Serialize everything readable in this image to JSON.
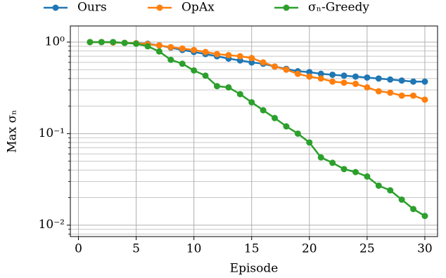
{
  "chart_data": {
    "type": "line",
    "xlabel": "Episode",
    "ylabel": "Max σₙ",
    "x": [
      1,
      2,
      3,
      4,
      5,
      6,
      7,
      8,
      9,
      10,
      11,
      12,
      13,
      14,
      15,
      16,
      17,
      18,
      19,
      20,
      21,
      22,
      23,
      24,
      25,
      26,
      27,
      28,
      29,
      30
    ],
    "series": [
      {
        "name": "Ours",
        "color": "#1f77b4",
        "values": [
          1.0,
          1.0,
          1.0,
          0.98,
          0.97,
          0.96,
          0.92,
          0.87,
          0.82,
          0.78,
          0.74,
          0.7,
          0.66,
          0.63,
          0.6,
          0.58,
          0.54,
          0.51,
          0.48,
          0.47,
          0.45,
          0.44,
          0.43,
          0.42,
          0.41,
          0.4,
          0.39,
          0.38,
          0.37,
          0.37
        ]
      },
      {
        "name": "OpAx",
        "color": "#ff7f0e",
        "values": [
          1.0,
          1.0,
          0.99,
          0.98,
          0.97,
          0.95,
          0.92,
          0.88,
          0.85,
          0.82,
          0.78,
          0.74,
          0.72,
          0.7,
          0.67,
          0.6,
          0.54,
          0.5,
          0.45,
          0.42,
          0.4,
          0.37,
          0.36,
          0.35,
          0.32,
          0.29,
          0.28,
          0.26,
          0.26,
          0.235
        ]
      },
      {
        "name": "σₙ-Greedy",
        "color": "#2ca02c",
        "values": [
          1.0,
          1.0,
          1.0,
          0.98,
          0.96,
          0.9,
          0.79,
          0.64,
          0.58,
          0.49,
          0.43,
          0.33,
          0.32,
          0.27,
          0.22,
          0.18,
          0.148,
          0.12,
          0.1,
          0.08,
          0.055,
          0.048,
          0.041,
          0.038,
          0.034,
          0.027,
          0.024,
          0.019,
          0.015,
          0.0126
        ]
      }
    ],
    "xlim": [
      -0.7,
      31.1
    ],
    "xticks": [
      0,
      5,
      10,
      15,
      20,
      25,
      30
    ],
    "ylim": [
      0.0075,
      1.5
    ],
    "log_y": true,
    "yticks": [
      {
        "value": 0.01,
        "label": "10⁻²"
      },
      {
        "value": 0.1,
        "label": "10⁻¹"
      },
      {
        "value": 1,
        "label": "10⁰"
      }
    ],
    "yminorticks": [
      0.008,
      0.009,
      0.02,
      0.03,
      0.04,
      0.05,
      0.06,
      0.07,
      0.08,
      0.09,
      0.2,
      0.3,
      0.4,
      0.5,
      0.6,
      0.7,
      0.8,
      0.9
    ],
    "grid": true,
    "legend": "top"
  }
}
